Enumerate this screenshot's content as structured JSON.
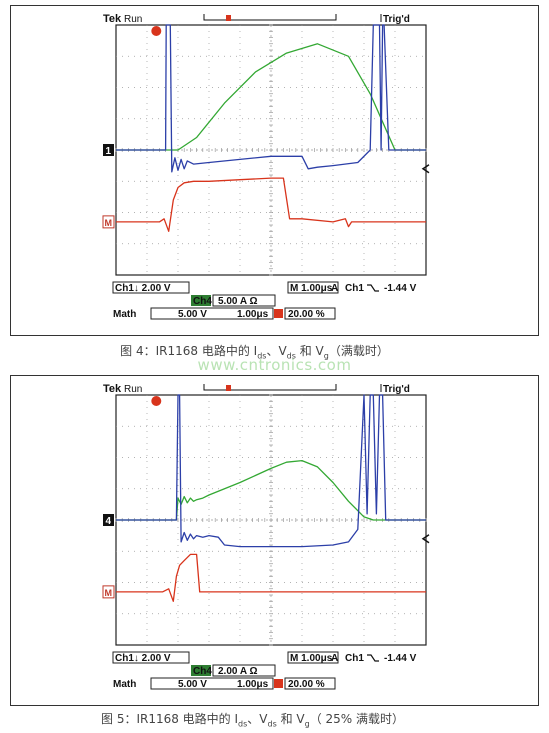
{
  "colors": {
    "vg": "#d8341c",
    "vds": "#2c3fa8",
    "ids": "#33a833",
    "grid": "#9a9a9a"
  },
  "watermark": "www.cntronics.com",
  "chart_data": [
    {
      "type": "line",
      "title": "",
      "header": {
        "brand": "Tek",
        "mode": "Run",
        "status": "Trig'd"
      },
      "channel_markers": [
        "1",
        "M"
      ],
      "readouts": {
        "ch1_scale": "Ch1↓ 2.00 V",
        "ch4_label": "Ch4",
        "ch4_scale": "5.00 A Ω",
        "math_label": "Math",
        "math_scale": "5.00 V",
        "math_time": "1.00μs",
        "timebase": "M 1.00μs",
        "trigger_source": "A",
        "trigger_channel": "Ch1",
        "trigger_level": "-1.44 V",
        "trigger_position": "20.00 %"
      },
      "caption": {
        "prefix": "图 4：IR1168 电路中的 I",
        "sub1": "ds",
        "mid1": "、V",
        "sub2": "ds",
        "mid2": " 和 V",
        "sub3": "g",
        "suffix": "（满载时）"
      },
      "xlim": [
        0,
        10
      ],
      "ylim": [
        -4,
        4
      ],
      "grid": true,
      "series": [
        {
          "name": "Ids",
          "color": "#33a833",
          "x": [
            0,
            2.0,
            2.6,
            3.5,
            4.5,
            5.5,
            6.5,
            7.5,
            8.2,
            8.6,
            9.0,
            10
          ],
          "y": [
            0,
            0,
            0.4,
            1.5,
            2.5,
            3.1,
            3.4,
            3.0,
            1.8,
            0.9,
            0,
            0
          ]
        },
        {
          "name": "Vds",
          "color": "#2c3fa8",
          "x": [
            0,
            1.15,
            1.25,
            1.6,
            1.62,
            1.7,
            1.75,
            1.8,
            1.9,
            2.0,
            2.1,
            2.2,
            2.3,
            2.5,
            3.0,
            4.0,
            5.0,
            6.0,
            6.2,
            6.5,
            7.0,
            7.8,
            8.2,
            8.3,
            8.35,
            8.5,
            8.55,
            8.6,
            8.65,
            8.8,
            9.0,
            10
          ],
          "y": [
            0,
            0,
            0,
            0,
            4.0,
            4.0,
            4.0,
            -0.7,
            -0.25,
            -0.65,
            -0.3,
            -0.6,
            -0.35,
            -0.45,
            -0.4,
            -0.3,
            -0.2,
            -0.2,
            -0.6,
            -0.55,
            -0.5,
            -0.4,
            0,
            4.0,
            4.0,
            4.0,
            0,
            4.0,
            4.0,
            0,
            0,
            0
          ]
        },
        {
          "name": "Vg",
          "color": "#d8341c",
          "x": [
            0,
            1.4,
            1.55,
            1.7,
            1.85,
            2.0,
            2.2,
            2.5,
            3.0,
            4.0,
            5.0,
            5.4,
            5.6,
            6.0,
            7.0,
            7.4,
            7.5,
            7.6,
            10
          ],
          "y": [
            -2.3,
            -2.3,
            -2.2,
            -2.6,
            -1.6,
            -1.2,
            -1.05,
            -1.0,
            -1.0,
            -0.95,
            -0.9,
            -0.9,
            -2.2,
            -2.2,
            -2.3,
            -2.2,
            -2.45,
            -2.3,
            -2.3
          ]
        }
      ]
    },
    {
      "type": "line",
      "title": "",
      "header": {
        "brand": "Tek",
        "mode": "Run",
        "status": "Trig'd"
      },
      "channel_markers": [
        "4",
        "M"
      ],
      "readouts": {
        "ch1_scale": "Ch1↓ 2.00 V",
        "ch4_label": "Ch4",
        "ch4_scale": "2.00 A Ω",
        "math_label": "Math",
        "math_scale": "5.00 V",
        "math_time": "1.00μs",
        "timebase": "M 1.00μs",
        "trigger_source": "A",
        "trigger_channel": "Ch1",
        "trigger_level": "-1.44 V",
        "trigger_position": "20.00 %"
      },
      "caption": {
        "prefix": "图 5：IR1168 电路中的 I",
        "sub1": "ds",
        "mid1": "、V",
        "sub2": "ds",
        "mid2": " 和 V",
        "sub3": "g",
        "suffix": "（ 25% 满载时）"
      },
      "xlim": [
        0,
        10
      ],
      "ylim": [
        -4,
        4
      ],
      "grid": true,
      "series": [
        {
          "name": "Ids",
          "color": "#33a833",
          "x": [
            0,
            1.95,
            2.0,
            2.1,
            2.2,
            2.3,
            2.4,
            2.5,
            2.6,
            2.8,
            3.0,
            4.0,
            5.0,
            5.5,
            6.0,
            6.5,
            7.0,
            7.5,
            8.0,
            8.3,
            10
          ],
          "y": [
            0,
            0,
            0.7,
            0.5,
            0.75,
            0.55,
            0.7,
            0.6,
            0.65,
            0.7,
            0.8,
            1.2,
            1.65,
            1.85,
            1.9,
            1.7,
            1.2,
            0.6,
            0.1,
            0,
            0
          ]
        },
        {
          "name": "Vds",
          "color": "#2c3fa8",
          "x": [
            0,
            1.95,
            2.0,
            2.05,
            2.1,
            2.2,
            2.3,
            2.4,
            2.5,
            2.6,
            2.8,
            3.0,
            3.3,
            3.5,
            4.0,
            5.0,
            6.0,
            7.0,
            7.5,
            7.8,
            8.0,
            8.1,
            8.2,
            8.3,
            8.4,
            8.5,
            8.6,
            8.7,
            9.0,
            10
          ],
          "y": [
            0,
            0,
            4.0,
            4.0,
            -0.7,
            -0.4,
            -0.65,
            -0.45,
            -0.6,
            -0.5,
            -0.55,
            -0.5,
            -0.55,
            -0.8,
            -0.85,
            -0.85,
            -0.85,
            -0.8,
            -0.7,
            -0.3,
            4.0,
            0.2,
            4.0,
            4.0,
            0.2,
            4.0,
            4.0,
            0,
            0,
            0
          ]
        },
        {
          "name": "Vg",
          "color": "#d8341c",
          "x": [
            0,
            1.5,
            1.7,
            1.85,
            1.95,
            2.05,
            2.2,
            2.4,
            2.6,
            2.7,
            2.8,
            3.0,
            4.0,
            10
          ],
          "y": [
            -2.3,
            -2.3,
            -2.2,
            -2.6,
            -1.8,
            -1.45,
            -1.3,
            -1.1,
            -1.1,
            -2.3,
            -2.3,
            -2.3,
            -2.3,
            -2.3
          ]
        }
      ]
    }
  ]
}
